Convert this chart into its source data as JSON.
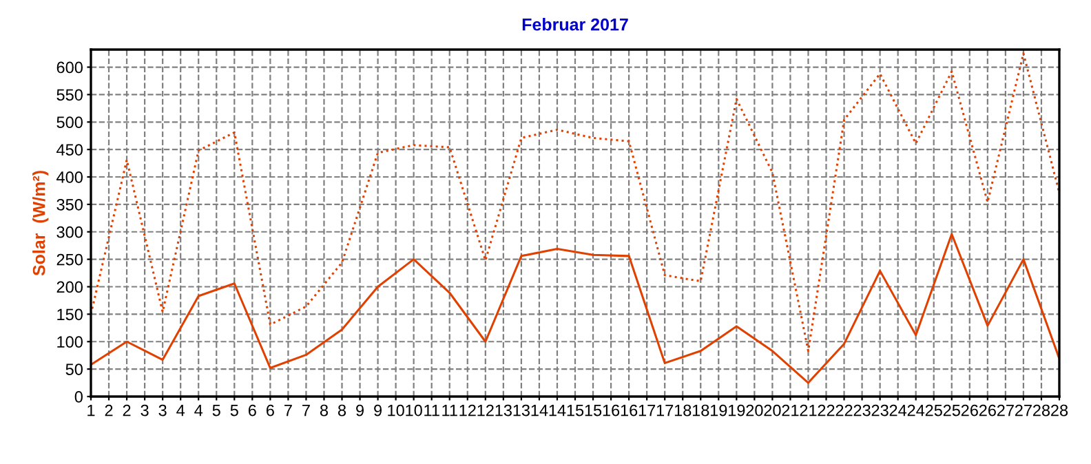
{
  "chart_data": {
    "type": "line",
    "title": "Februar 2017",
    "ylabel": "Solar  (W/m²)",
    "x": [
      1,
      2,
      3,
      4,
      5,
      6,
      7,
      8,
      9,
      10,
      11,
      12,
      13,
      14,
      15,
      16,
      17,
      18,
      19,
      20,
      21,
      22,
      23,
      24,
      25,
      26,
      27,
      28
    ],
    "series": [
      {
        "color": "#e04000",
        "line_style": "solid",
        "values": [
          58,
          100,
          67,
          183,
          206,
          52,
          76,
          122,
          200,
          250,
          189,
          100,
          256,
          269,
          258,
          256,
          61,
          83,
          128,
          83,
          25,
          96,
          229,
          112,
          296,
          129,
          250,
          69
        ]
      },
      {
        "color": "#e04000",
        "line_style": "dotted",
        "values": [
          150,
          431,
          154,
          448,
          481,
          131,
          164,
          244,
          444,
          458,
          454,
          248,
          471,
          486,
          471,
          465,
          221,
          210,
          542,
          408,
          83,
          504,
          588,
          461,
          592,
          354,
          625,
          371
        ]
      }
    ],
    "xlim": [
      1,
      28
    ],
    "xticks": [
      1,
      {
        "value": 1.5,
        "label": "2"
      },
      2,
      {
        "value": 2.5,
        "label": "3"
      },
      3,
      {
        "value": 3.5,
        "label": "4"
      },
      4,
      {
        "value": 4.5,
        "label": "5"
      },
      5,
      {
        "value": 5.5,
        "label": "6"
      },
      6,
      {
        "value": 6.5,
        "label": "7"
      },
      7,
      {
        "value": 7.5,
        "label": "8"
      },
      8,
      {
        "value": 8.5,
        "label": "9"
      },
      9,
      {
        "value": 9.5,
        "label": "10"
      },
      10,
      {
        "value": 10.5,
        "label": "11"
      },
      11,
      {
        "value": 11.5,
        "label": "12"
      },
      12,
      {
        "value": 12.5,
        "label": "13"
      },
      13,
      {
        "value": 13.5,
        "label": "14"
      },
      14,
      {
        "value": 14.5,
        "label": "15"
      },
      15,
      {
        "value": 15.5,
        "label": "16"
      },
      16,
      {
        "value": 16.5,
        "label": "17"
      },
      17,
      {
        "value": 17.5,
        "label": "18"
      },
      18,
      {
        "value": 18.5,
        "label": "19"
      },
      19,
      {
        "value": 19.5,
        "label": "20"
      },
      20,
      {
        "value": 20.5,
        "label": "21"
      },
      21,
      {
        "value": 21.5,
        "label": "22"
      },
      22,
      {
        "value": 22.5,
        "label": "23"
      },
      23,
      {
        "value": 23.5,
        "label": "24"
      },
      24,
      {
        "value": 24.5,
        "label": "25"
      },
      25,
      {
        "value": 25.5,
        "label": "26"
      },
      26,
      {
        "value": 26.5,
        "label": "27"
      },
      27,
      {
        "value": 27.5,
        "label": "28"
      },
      28
    ],
    "ylim": [
      0,
      632
    ],
    "yticks": [
      0,
      50,
      100,
      150,
      200,
      250,
      300,
      350,
      400,
      450,
      500,
      550,
      600
    ],
    "grid": true,
    "marker": "none",
    "legend": false
  }
}
